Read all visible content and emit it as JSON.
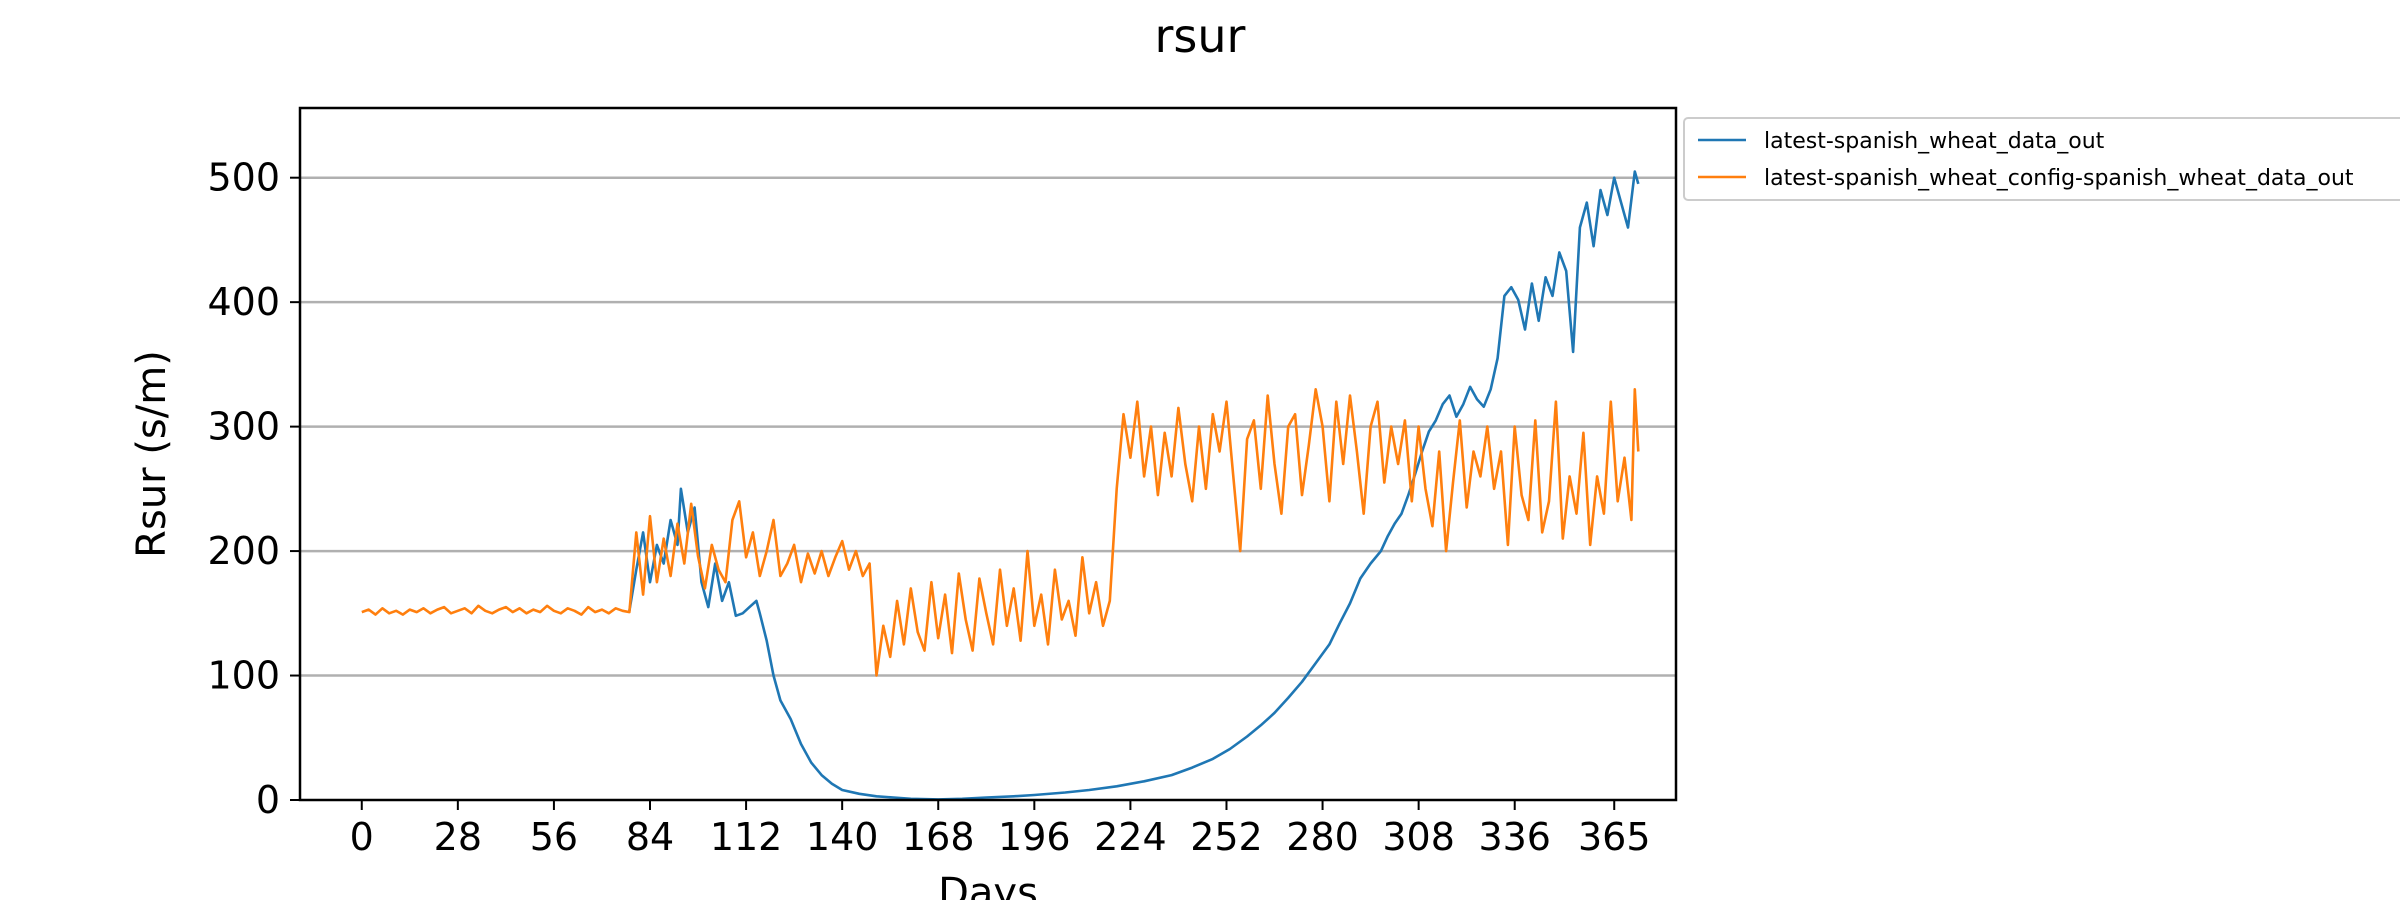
{
  "chart_data": {
    "type": "line",
    "title": "rsur",
    "xlabel": "Days",
    "ylabel": "Rsur (s/m)",
    "xlim": [
      -18,
      383
    ],
    "ylim": [
      0,
      556
    ],
    "x_ticks": [
      0,
      28,
      56,
      84,
      112,
      140,
      168,
      196,
      224,
      252,
      280,
      308,
      336,
      365
    ],
    "y_ticks": [
      0,
      100,
      200,
      300,
      400,
      500
    ],
    "grid": "horizontal",
    "legend_position": "outside-right",
    "series": [
      {
        "name": "latest-spanish_wheat_data_out",
        "color": "#1f77b4",
        "points": [
          [
            78,
            152
          ],
          [
            80,
            185
          ],
          [
            82,
            215
          ],
          [
            84,
            175
          ],
          [
            86,
            205
          ],
          [
            88,
            190
          ],
          [
            90,
            225
          ],
          [
            92,
            205
          ],
          [
            93,
            250
          ],
          [
            95,
            215
          ],
          [
            97,
            235
          ],
          [
            99,
            175
          ],
          [
            101,
            155
          ],
          [
            103,
            190
          ],
          [
            105,
            160
          ],
          [
            107,
            175
          ],
          [
            109,
            148
          ],
          [
            111,
            150
          ],
          [
            113,
            155
          ],
          [
            115,
            160
          ],
          [
            116,
            150
          ],
          [
            118,
            128
          ],
          [
            120,
            100
          ],
          [
            122,
            80
          ],
          [
            125,
            65
          ],
          [
            128,
            45
          ],
          [
            131,
            30
          ],
          [
            134,
            20
          ],
          [
            137,
            13
          ],
          [
            140,
            8
          ],
          [
            145,
            5
          ],
          [
            150,
            3
          ],
          [
            155,
            2
          ],
          [
            160,
            1
          ],
          [
            168,
            0.5
          ],
          [
            175,
            1
          ],
          [
            182,
            2
          ],
          [
            190,
            3
          ],
          [
            196,
            4
          ],
          [
            205,
            6
          ],
          [
            212,
            8
          ],
          [
            220,
            11
          ],
          [
            228,
            15
          ],
          [
            236,
            20
          ],
          [
            242,
            26
          ],
          [
            248,
            33
          ],
          [
            253,
            41
          ],
          [
            258,
            51
          ],
          [
            262,
            60
          ],
          [
            266,
            70
          ],
          [
            270,
            82
          ],
          [
            274,
            95
          ],
          [
            278,
            110
          ],
          [
            282,
            125
          ],
          [
            285,
            142
          ],
          [
            288,
            158
          ],
          [
            291,
            178
          ],
          [
            294,
            190
          ],
          [
            297,
            200
          ],
          [
            299,
            212
          ],
          [
            301,
            222
          ],
          [
            303,
            230
          ],
          [
            305,
            245
          ],
          [
            307,
            262
          ],
          [
            309,
            280
          ],
          [
            311,
            296
          ],
          [
            313,
            305
          ],
          [
            315,
            318
          ],
          [
            317,
            325
          ],
          [
            319,
            308
          ],
          [
            321,
            318
          ],
          [
            323,
            332
          ],
          [
            325,
            322
          ],
          [
            327,
            316
          ],
          [
            329,
            330
          ],
          [
            331,
            355
          ],
          [
            333,
            405
          ],
          [
            335,
            412
          ],
          [
            337,
            402
          ],
          [
            339,
            378
          ],
          [
            341,
            415
          ],
          [
            343,
            385
          ],
          [
            345,
            420
          ],
          [
            347,
            405
          ],
          [
            349,
            440
          ],
          [
            351,
            425
          ],
          [
            353,
            360
          ],
          [
            355,
            460
          ],
          [
            357,
            480
          ],
          [
            359,
            445
          ],
          [
            361,
            490
          ],
          [
            363,
            470
          ],
          [
            365,
            500
          ],
          [
            367,
            480
          ],
          [
            369,
            460
          ],
          [
            371,
            505
          ],
          [
            372,
            495
          ]
        ]
      },
      {
        "name": "latest-spanish_wheat_config-spanish_wheat_data_out",
        "color": "#ff7f0e",
        "points": [
          [
            0,
            151
          ],
          [
            2,
            153
          ],
          [
            4,
            149
          ],
          [
            6,
            154
          ],
          [
            8,
            150
          ],
          [
            10,
            152
          ],
          [
            12,
            149
          ],
          [
            14,
            153
          ],
          [
            16,
            151
          ],
          [
            18,
            154
          ],
          [
            20,
            150
          ],
          [
            22,
            153
          ],
          [
            24,
            155
          ],
          [
            26,
            150
          ],
          [
            28,
            152
          ],
          [
            30,
            154
          ],
          [
            32,
            150
          ],
          [
            34,
            156
          ],
          [
            36,
            152
          ],
          [
            38,
            150
          ],
          [
            40,
            153
          ],
          [
            42,
            155
          ],
          [
            44,
            151
          ],
          [
            46,
            154
          ],
          [
            48,
            150
          ],
          [
            50,
            153
          ],
          [
            52,
            151
          ],
          [
            54,
            156
          ],
          [
            56,
            152
          ],
          [
            58,
            150
          ],
          [
            60,
            154
          ],
          [
            62,
            152
          ],
          [
            64,
            149
          ],
          [
            66,
            155
          ],
          [
            68,
            151
          ],
          [
            70,
            153
          ],
          [
            72,
            150
          ],
          [
            74,
            154
          ],
          [
            76,
            152
          ],
          [
            78,
            151
          ],
          [
            80,
            215
          ],
          [
            82,
            165
          ],
          [
            84,
            228
          ],
          [
            86,
            175
          ],
          [
            88,
            210
          ],
          [
            90,
            180
          ],
          [
            92,
            222
          ],
          [
            94,
            190
          ],
          [
            96,
            238
          ],
          [
            98,
            196
          ],
          [
            100,
            170
          ],
          [
            102,
            205
          ],
          [
            104,
            185
          ],
          [
            106,
            175
          ],
          [
            108,
            225
          ],
          [
            110,
            240
          ],
          [
            112,
            195
          ],
          [
            114,
            215
          ],
          [
            116,
            180
          ],
          [
            118,
            200
          ],
          [
            120,
            225
          ],
          [
            122,
            180
          ],
          [
            124,
            190
          ],
          [
            126,
            205
          ],
          [
            128,
            175
          ],
          [
            130,
            198
          ],
          [
            132,
            182
          ],
          [
            134,
            200
          ],
          [
            136,
            180
          ],
          [
            138,
            195
          ],
          [
            140,
            208
          ],
          [
            142,
            185
          ],
          [
            144,
            200
          ],
          [
            146,
            180
          ],
          [
            148,
            190
          ],
          [
            150,
            100
          ],
          [
            152,
            140
          ],
          [
            154,
            115
          ],
          [
            156,
            160
          ],
          [
            158,
            125
          ],
          [
            160,
            170
          ],
          [
            162,
            135
          ],
          [
            164,
            120
          ],
          [
            166,
            175
          ],
          [
            168,
            130
          ],
          [
            170,
            165
          ],
          [
            172,
            118
          ],
          [
            174,
            182
          ],
          [
            176,
            145
          ],
          [
            178,
            120
          ],
          [
            180,
            178
          ],
          [
            182,
            150
          ],
          [
            184,
            125
          ],
          [
            186,
            185
          ],
          [
            188,
            140
          ],
          [
            190,
            170
          ],
          [
            192,
            128
          ],
          [
            194,
            200
          ],
          [
            196,
            140
          ],
          [
            198,
            165
          ],
          [
            200,
            125
          ],
          [
            202,
            185
          ],
          [
            204,
            145
          ],
          [
            206,
            160
          ],
          [
            208,
            132
          ],
          [
            210,
            195
          ],
          [
            212,
            150
          ],
          [
            214,
            175
          ],
          [
            216,
            140
          ],
          [
            218,
            160
          ],
          [
            220,
            250
          ],
          [
            222,
            310
          ],
          [
            224,
            275
          ],
          [
            226,
            320
          ],
          [
            228,
            260
          ],
          [
            230,
            300
          ],
          [
            232,
            245
          ],
          [
            234,
            295
          ],
          [
            236,
            260
          ],
          [
            238,
            315
          ],
          [
            240,
            270
          ],
          [
            242,
            240
          ],
          [
            244,
            300
          ],
          [
            246,
            250
          ],
          [
            248,
            310
          ],
          [
            250,
            280
          ],
          [
            252,
            320
          ],
          [
            254,
            260
          ],
          [
            256,
            200
          ],
          [
            258,
            290
          ],
          [
            260,
            305
          ],
          [
            262,
            250
          ],
          [
            264,
            325
          ],
          [
            266,
            270
          ],
          [
            268,
            230
          ],
          [
            270,
            300
          ],
          [
            272,
            310
          ],
          [
            274,
            245
          ],
          [
            276,
            285
          ],
          [
            278,
            330
          ],
          [
            280,
            300
          ],
          [
            282,
            240
          ],
          [
            284,
            320
          ],
          [
            286,
            270
          ],
          [
            288,
            325
          ],
          [
            290,
            280
          ],
          [
            292,
            230
          ],
          [
            294,
            300
          ],
          [
            296,
            320
          ],
          [
            298,
            255
          ],
          [
            300,
            300
          ],
          [
            302,
            270
          ],
          [
            304,
            305
          ],
          [
            306,
            240
          ],
          [
            308,
            300
          ],
          [
            310,
            250
          ],
          [
            312,
            220
          ],
          [
            314,
            280
          ],
          [
            316,
            200
          ],
          [
            318,
            255
          ],
          [
            320,
            305
          ],
          [
            322,
            235
          ],
          [
            324,
            280
          ],
          [
            326,
            260
          ],
          [
            328,
            300
          ],
          [
            330,
            250
          ],
          [
            332,
            280
          ],
          [
            334,
            205
          ],
          [
            336,
            300
          ],
          [
            338,
            245
          ],
          [
            340,
            225
          ],
          [
            342,
            305
          ],
          [
            344,
            215
          ],
          [
            346,
            240
          ],
          [
            348,
            320
          ],
          [
            350,
            210
          ],
          [
            352,
            260
          ],
          [
            354,
            230
          ],
          [
            356,
            295
          ],
          [
            358,
            205
          ],
          [
            360,
            260
          ],
          [
            362,
            230
          ],
          [
            364,
            320
          ],
          [
            366,
            240
          ],
          [
            368,
            275
          ],
          [
            370,
            225
          ],
          [
            371,
            330
          ],
          [
            372,
            280
          ]
        ]
      }
    ]
  }
}
